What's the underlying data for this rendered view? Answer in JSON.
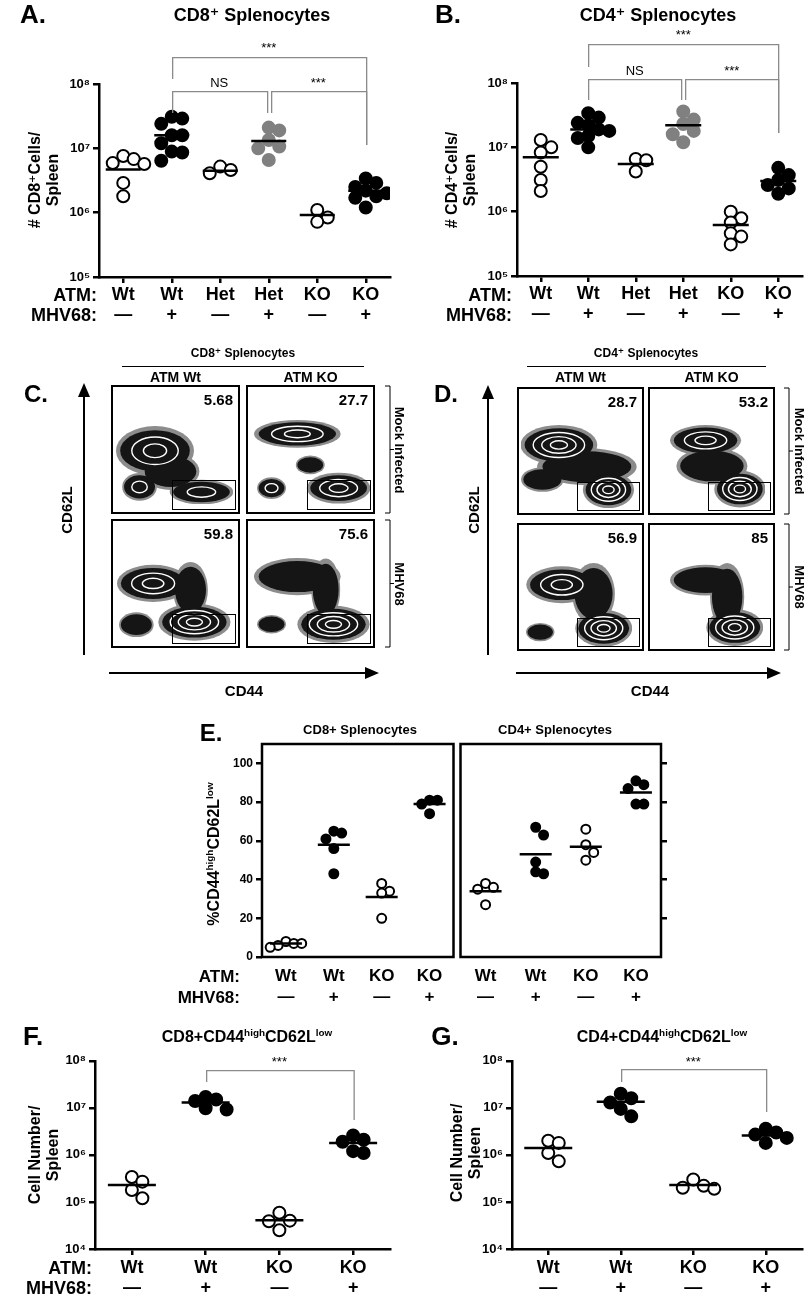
{
  "chart_data": [
    {
      "type": "scatter",
      "title": "CD8⁺ Splenocytes",
      "ylabel": "# CD8⁺Cells/\nSpleen",
      "annotations": [
        "A.",
        "ATM:",
        "MHV68:",
        "***",
        "NS",
        "***"
      ],
      "categories": [
        "Wt\n—",
        "Wt\n+",
        "Het\n—",
        "Het\n+",
        "KO\n—",
        "KO\n+"
      ],
      "log": "y",
      "ylim": [
        100000,
        100000000
      ],
      "yticks": [
        {
          "value": 100000,
          "label": "10⁵"
        },
        {
          "value": 1000000,
          "label": "10⁶"
        },
        {
          "value": 10000000,
          "label": "10⁷"
        },
        {
          "value": 100000000,
          "label": "10⁸"
        }
      ],
      "marker": "circle",
      "series": [
        {
          "color": "#ffffff",
          "x": [
            "Wt\n—",
            "Wt\n—",
            "Wt\n—",
            "Wt\n—",
            "Wt\n—",
            "Wt\n—"
          ],
          "values": [
            7600000,
            6800000,
            5900000,
            5700000,
            2900000,
            1800000
          ]
        },
        {
          "color": "#000000",
          "x": [
            "Wt\n+",
            "Wt\n+",
            "Wt\n+",
            "Wt\n+",
            "Wt\n+",
            "Wt\n+",
            "Wt\n+",
            "Wt\n+",
            "Wt\n+"
          ],
          "values": [
            31000000,
            29000000,
            24000000,
            16000000,
            16000000,
            12000000,
            8900000,
            8600000,
            6400000
          ]
        },
        {
          "color": "#ffffff",
          "x": [
            "Het\n—",
            "Het\n—",
            "Het\n—"
          ],
          "values": [
            5200000,
            4600000,
            4100000
          ]
        },
        {
          "color": "#808080",
          "x": [
            "Het\n+",
            "Het\n+",
            "Het\n+",
            "Het\n+",
            "Het\n+",
            "Het\n+"
          ],
          "values": [
            21000000,
            19000000,
            13500000,
            10700000,
            10000000,
            6600000
          ]
        },
        {
          "color": "#ffffff",
          "x": [
            "KO\n—",
            "KO\n—",
            "KO\n—"
          ],
          "values": [
            1100000,
            840000,
            720000
          ]
        },
        {
          "color": "#000000",
          "x": [
            "KO\n+",
            "KO\n+",
            "KO\n+",
            "KO\n+",
            "KO\n+",
            "KO\n+",
            "KO\n+",
            "KO\n+"
          ],
          "values": [
            3400000,
            2900000,
            2500000,
            2200000,
            2000000,
            1800000,
            1700000,
            1200000
          ]
        },
        {
          "type": "box",
          "color": "#000000",
          "boxes": [
            {
              "low": 4700000,
              "q1": 4700000,
              "median": 4700000,
              "q3": 4700000,
              "high": 4700000
            },
            {
              "low": 16000000,
              "q1": 16000000,
              "median": 16000000,
              "q3": 16000000,
              "high": 16000000
            },
            {
              "low": 4500000,
              "q1": 4500000,
              "median": 4500000,
              "q3": 4500000,
              "high": 4500000
            },
            {
              "low": 13000000,
              "q1": 13000000,
              "median": 13000000,
              "q3": 13000000,
              "high": 13000000
            },
            {
              "low": 920000,
              "q1": 920000,
              "median": 920000,
              "q3": 920000,
              "high": 920000
            },
            {
              "low": 2200000,
              "q1": 2200000,
              "median": 2200000,
              "q3": 2200000,
              "high": 2200000
            }
          ]
        }
      ]
    },
    {
      "type": "scatter",
      "title": "CD4⁺ Splenocytes",
      "ylabel": "# CD4⁺Cells/\nSpleen",
      "annotations": [
        "B.",
        "ATM:",
        "MHV68:",
        "***",
        "NS",
        "***"
      ],
      "categories": [
        "Wt\n—",
        "Wt\n+",
        "Het\n—",
        "Het\n+",
        "KO\n—",
        "KO\n+"
      ],
      "log": "y",
      "ylim": [
        100000,
        100000000
      ],
      "yticks": [
        {
          "value": 100000,
          "label": "10⁵"
        },
        {
          "value": 1000000,
          "label": "10⁶"
        },
        {
          "value": 10000000,
          "label": "10⁷"
        },
        {
          "value": 100000000,
          "label": "10⁸"
        }
      ],
      "marker": "circle",
      "series": [
        {
          "color": "#ffffff",
          "x": [
            "Wt\n—",
            "Wt\n—",
            "Wt\n—",
            "Wt\n—",
            "Wt\n—",
            "Wt\n—"
          ],
          "values": [
            13000000,
            10000000,
            8300000,
            5000000,
            3100000,
            2100000
          ]
        },
        {
          "color": "#000000",
          "x": [
            "Wt\n+",
            "Wt\n+",
            "Wt\n+",
            "Wt\n+",
            "Wt\n+",
            "Wt\n+",
            "Wt\n+",
            "Wt\n+",
            "Wt\n+"
          ],
          "values": [
            34000000,
            29000000,
            24000000,
            22000000,
            19000000,
            18000000,
            15000000,
            14000000,
            10000000
          ]
        },
        {
          "color": "#ffffff",
          "x": [
            "Het\n—",
            "Het\n—",
            "Het\n—"
          ],
          "values": [
            6600000,
            6300000,
            4200000
          ]
        },
        {
          "color": "#808080",
          "x": [
            "Het\n+",
            "Het\n+",
            "Het\n+",
            "Het\n+",
            "Het\n+",
            "Het\n+"
          ],
          "values": [
            36000000,
            27000000,
            23000000,
            18000000,
            16000000,
            12000000
          ]
        },
        {
          "color": "#ffffff",
          "x": [
            "KO\n—",
            "KO\n—",
            "KO\n—",
            "KO\n—",
            "KO\n—",
            "KO\n—"
          ],
          "values": [
            1000000,
            790000,
            680000,
            460000,
            410000,
            310000
          ]
        },
        {
          "color": "#000000",
          "x": [
            "KO\n+",
            "KO\n+",
            "KO\n+",
            "KO\n+",
            "KO\n+",
            "KO\n+"
          ],
          "values": [
            4800000,
            3700000,
            3100000,
            2600000,
            2300000,
            1900000
          ]
        },
        {
          "type": "box",
          "color": "#000000",
          "boxes": [
            {
              "low": 7000000,
              "q1": 7000000,
              "median": 7000000,
              "q3": 7000000,
              "high": 7000000
            },
            {
              "low": 19000000,
              "q1": 19000000,
              "median": 19000000,
              "q3": 19000000,
              "high": 19000000
            },
            {
              "low": 5500000,
              "q1": 5500000,
              "median": 5500000,
              "q3": 5500000,
              "high": 5500000
            },
            {
              "low": 22000000,
              "q1": 22000000,
              "median": 22000000,
              "q3": 22000000,
              "high": 22000000
            },
            {
              "low": 620000,
              "q1": 620000,
              "median": 620000,
              "q3": 620000,
              "high": 620000
            },
            {
              "low": 3000000,
              "q1": 3000000,
              "median": 3000000,
              "q3": 3000000,
              "high": 3000000
            }
          ]
        }
      ]
    },
    {
      "type": "other",
      "title": "CD8⁺ Splenocytes",
      "xlabel": "CD44",
      "ylabel": "CD62L",
      "categories": [
        "ATM Wt",
        "ATM KO"
      ],
      "y2_categories": [
        "Mock Infected",
        "MHV68"
      ],
      "annotations": [
        "C.",
        "5.68",
        "27.7",
        "59.8",
        "75.6"
      ]
    },
    {
      "type": "other",
      "title": "CD4⁺ Splenocytes",
      "xlabel": "CD44",
      "ylabel": "CD62L",
      "categories": [
        "ATM Wt",
        "ATM KO"
      ],
      "y2_categories": [
        "Mock Infected",
        "MHV68"
      ],
      "annotations": [
        "D.",
        "28.7",
        "53.2",
        "56.9",
        "85"
      ]
    },
    {
      "type": "scatter",
      "title": "CD8+ Splenocytes",
      "ylabel": "%CD44$^{high}$CD62L$^{low}$",
      "annotations": [
        "E.",
        "ATM:",
        "MHV68:"
      ],
      "categories": [
        "Wt\n—",
        "Wt\n+",
        "KO\n—",
        "KO\n+"
      ],
      "ylim": [
        0,
        110
      ],
      "yticks": [
        0,
        20,
        40,
        60,
        80,
        100
      ],
      "marker": "circle",
      "series": [
        {
          "color": "#ffffff",
          "x": [
            "Wt\n—",
            "Wt\n—",
            "Wt\n—",
            "Wt\n—",
            "Wt\n—"
          ],
          "values": [
            8,
            7,
            6,
            7,
            5
          ]
        },
        {
          "color": "#000000",
          "x": [
            "Wt\n+",
            "Wt\n+",
            "Wt\n+",
            "Wt\n+",
            "Wt\n+"
          ],
          "values": [
            65,
            64,
            61,
            56,
            43
          ]
        },
        {
          "color": "#ffffff",
          "x": [
            "KO\n—",
            "KO\n—",
            "KO\n—",
            "KO\n—"
          ],
          "values": [
            38,
            34,
            33,
            20
          ]
        },
        {
          "color": "#000000",
          "x": [
            "KO\n+",
            "KO\n+",
            "KO\n+",
            "KO\n+"
          ],
          "values": [
            81,
            81,
            79,
            74
          ]
        },
        {
          "type": "box",
          "color": "#000000",
          "boxes": [
            {
              "low": 7,
              "q1": 7,
              "median": 7,
              "q3": 7,
              "high": 7
            },
            {
              "low": 58,
              "q1": 58,
              "median": 58,
              "q3": 58,
              "high": 58
            },
            {
              "low": 31,
              "q1": 31,
              "median": 31,
              "q3": 31,
              "high": 31
            },
            {
              "low": 79,
              "q1": 79,
              "median": 79,
              "q3": 79,
              "high": 79
            }
          ]
        }
      ]
    },
    {
      "type": "scatter",
      "title": "CD4+ Splenocytes",
      "categories": [
        "Wt\n—",
        "Wt\n+",
        "KO\n—",
        "KO\n+"
      ],
      "ylim": [
        0,
        110
      ],
      "yticks": [
        20,
        40,
        60,
        80,
        100
      ],
      "tick_labels": "x",
      "marker": "circle",
      "series": [
        {
          "color": "#ffffff",
          "x": [
            "Wt\n—",
            "Wt\n—",
            "Wt\n—",
            "Wt\n—"
          ],
          "values": [
            38,
            36,
            35,
            27
          ]
        },
        {
          "color": "#000000",
          "x": [
            "Wt\n+",
            "Wt\n+",
            "Wt\n+",
            "Wt\n+",
            "Wt\n+"
          ],
          "values": [
            67,
            63,
            49,
            44,
            43
          ]
        },
        {
          "color": "#ffffff",
          "x": [
            "KO\n—",
            "KO\n—",
            "KO\n—",
            "KO\n—"
          ],
          "values": [
            66,
            58,
            54,
            50
          ]
        },
        {
          "color": "#000000",
          "x": [
            "KO\n+",
            "KO\n+",
            "KO\n+",
            "KO\n+",
            "KO\n+"
          ],
          "values": [
            91,
            89,
            87,
            79,
            79
          ]
        },
        {
          "type": "box",
          "color": "#000000",
          "boxes": [
            {
              "low": 34,
              "q1": 34,
              "median": 34,
              "q3": 34,
              "high": 34
            },
            {
              "low": 53,
              "q1": 53,
              "median": 53,
              "q3": 53,
              "high": 53
            },
            {
              "low": 57,
              "q1": 57,
              "median": 57,
              "q3": 57,
              "high": 57
            },
            {
              "low": 85,
              "q1": 85,
              "median": 85,
              "q3": 85,
              "high": 85
            }
          ]
        }
      ]
    },
    {
      "type": "scatter",
      "title": "CD8+CD44$^{high}$CD62L$^{low}$",
      "ylabel": "Cell Number/\nSpleen",
      "annotations": [
        "F.",
        "ATM:",
        "MHV68:",
        "***"
      ],
      "categories": [
        "Wt\n—",
        "Wt\n+",
        "KO\n—",
        "KO\n+"
      ],
      "log": "y",
      "ylim": [
        10000,
        100000000
      ],
      "yticks": [
        {
          "value": 10000,
          "label": "10⁴"
        },
        {
          "value": 100000,
          "label": "10⁵"
        },
        {
          "value": 1000000,
          "label": "10⁶"
        },
        {
          "value": 10000000,
          "label": "10⁷"
        },
        {
          "value": 100000000,
          "label": "10⁸"
        }
      ],
      "marker": "circle",
      "series": [
        {
          "color": "#ffffff",
          "x": [
            "Wt\n—",
            "Wt\n—",
            "Wt\n—",
            "Wt\n—"
          ],
          "values": [
            340000,
            270000,
            180000,
            120000
          ]
        },
        {
          "color": "#000000",
          "x": [
            "Wt\n+",
            "Wt\n+",
            "Wt\n+",
            "Wt\n+",
            "Wt\n+"
          ],
          "values": [
            17000000,
            15000000,
            14000000,
            9800000,
            9200000
          ]
        },
        {
          "color": "#ffffff",
          "x": [
            "KO\n—",
            "KO\n—",
            "KO\n—",
            "KO\n—"
          ],
          "values": [
            59000,
            40000,
            39000,
            25000
          ]
        },
        {
          "color": "#000000",
          "x": [
            "KO\n+",
            "KO\n+",
            "KO\n+",
            "KO\n+",
            "KO\n+"
          ],
          "values": [
            2600000,
            2100000,
            1900000,
            1200000,
            1100000
          ]
        },
        {
          "type": "box",
          "color": "#000000",
          "boxes": [
            {
              "low": 230000,
              "q1": 230000,
              "median": 230000,
              "q3": 230000,
              "high": 230000
            },
            {
              "low": 13000000,
              "q1": 13000000,
              "median": 13000000,
              "q3": 13000000,
              "high": 13000000
            },
            {
              "low": 41000,
              "q1": 41000,
              "median": 41000,
              "q3": 41000,
              "high": 41000
            },
            {
              "low": 1800000,
              "q1": 1800000,
              "median": 1800000,
              "q3": 1800000,
              "high": 1800000
            }
          ]
        }
      ]
    },
    {
      "type": "scatter",
      "title": "CD4+CD44$^{high}$CD62L$^{low}$",
      "ylabel": "Cell Number/\nSpleen",
      "annotations": [
        "G.",
        "***"
      ],
      "categories": [
        "Wt\n—",
        "Wt\n+",
        "KO\n—",
        "KO\n+"
      ],
      "log": "y",
      "ylim": [
        10000,
        100000000
      ],
      "yticks": [
        {
          "value": 10000,
          "label": "10⁴"
        },
        {
          "value": 100000,
          "label": "10⁵"
        },
        {
          "value": 1000000,
          "label": "10⁶"
        },
        {
          "value": 10000000,
          "label": "10⁷"
        },
        {
          "value": 100000000,
          "label": "10⁸"
        }
      ],
      "marker": "circle",
      "series": [
        {
          "color": "#ffffff",
          "x": [
            "Wt\n—",
            "Wt\n—",
            "Wt\n—",
            "Wt\n—"
          ],
          "values": [
            2000000,
            1800000,
            1100000,
            730000
          ]
        },
        {
          "color": "#000000",
          "x": [
            "Wt\n+",
            "Wt\n+",
            "Wt\n+",
            "Wt\n+",
            "Wt\n+"
          ],
          "values": [
            20000000,
            16000000,
            13000000,
            9500000,
            6600000
          ]
        },
        {
          "color": "#ffffff",
          "x": [
            "KO\n—",
            "KO\n—",
            "KO\n—",
            "KO\n—"
          ],
          "values": [
            300000,
            220000,
            200000,
            190000
          ]
        },
        {
          "color": "#000000",
          "x": [
            "KO\n+",
            "KO\n+",
            "KO\n+",
            "KO\n+",
            "KO\n+"
          ],
          "values": [
            3600000,
            3000000,
            2700000,
            2300000,
            1800000
          ]
        },
        {
          "type": "box",
          "color": "#000000",
          "boxes": [
            {
              "low": 1400000,
              "q1": 1400000,
              "median": 1400000,
              "q3": 1400000,
              "high": 1400000
            },
            {
              "low": 13500000,
              "q1": 13500000,
              "median": 13500000,
              "q3": 13500000,
              "high": 13500000
            },
            {
              "low": 230000,
              "q1": 230000,
              "median": 230000,
              "q3": 230000,
              "high": 230000
            },
            {
              "low": 2600000,
              "q1": 2600000,
              "median": 2600000,
              "q3": 2600000,
              "high": 2600000
            }
          ]
        }
      ]
    }
  ]
}
